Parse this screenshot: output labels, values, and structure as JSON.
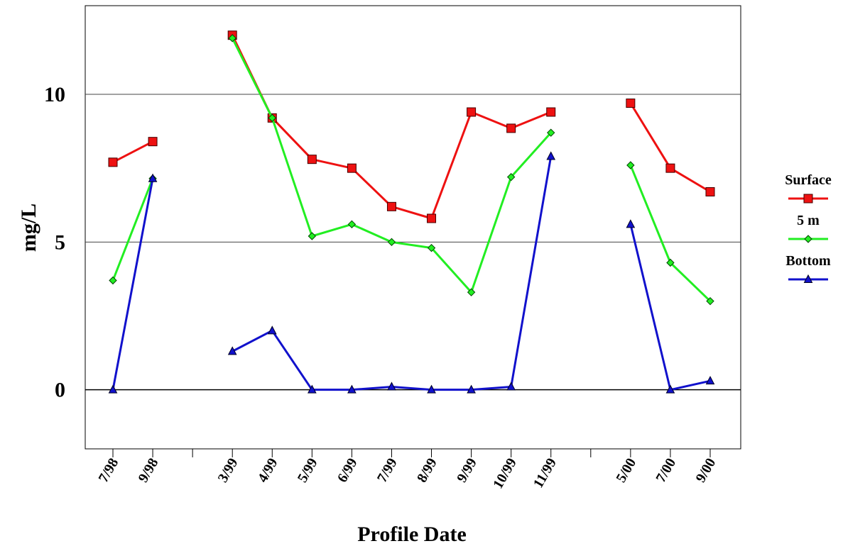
{
  "chart_data": {
    "type": "line",
    "x_label": "Profile Date",
    "y_label": "mg/L",
    "categories": [
      "7/98",
      "9/98",
      null,
      "3/99",
      "4/99",
      "5/99",
      "6/99",
      "7/99",
      "8/99",
      "9/99",
      "10/99",
      "11/99",
      null,
      "5/00",
      "7/00",
      "9/00"
    ],
    "series": [
      {
        "name": "Surface",
        "color": "#ee1111",
        "marker": "square",
        "values": [
          7.7,
          8.4,
          null,
          12.0,
          9.2,
          7.8,
          7.5,
          6.2,
          5.8,
          9.4,
          8.85,
          9.4,
          null,
          9.7,
          7.5,
          6.7
        ]
      },
      {
        "name": "5 m",
        "color": "#22ee22",
        "marker": "diamond",
        "values": [
          3.7,
          7.15,
          null,
          11.9,
          9.2,
          5.2,
          5.6,
          5.0,
          4.8,
          3.3,
          7.2,
          8.7,
          null,
          7.6,
          4.3,
          3.0
        ]
      },
      {
        "name": "Bottom",
        "color": "#1111cc",
        "marker": "triangle",
        "values": [
          0,
          7.15,
          null,
          1.3,
          2.0,
          0,
          0,
          0.1,
          0,
          0,
          0.1,
          7.9,
          null,
          5.6,
          0,
          0.3
        ]
      }
    ],
    "ylim": [
      -2,
      13
    ],
    "yticks": [
      0,
      5,
      10
    ],
    "grid": true,
    "legend": "right"
  }
}
